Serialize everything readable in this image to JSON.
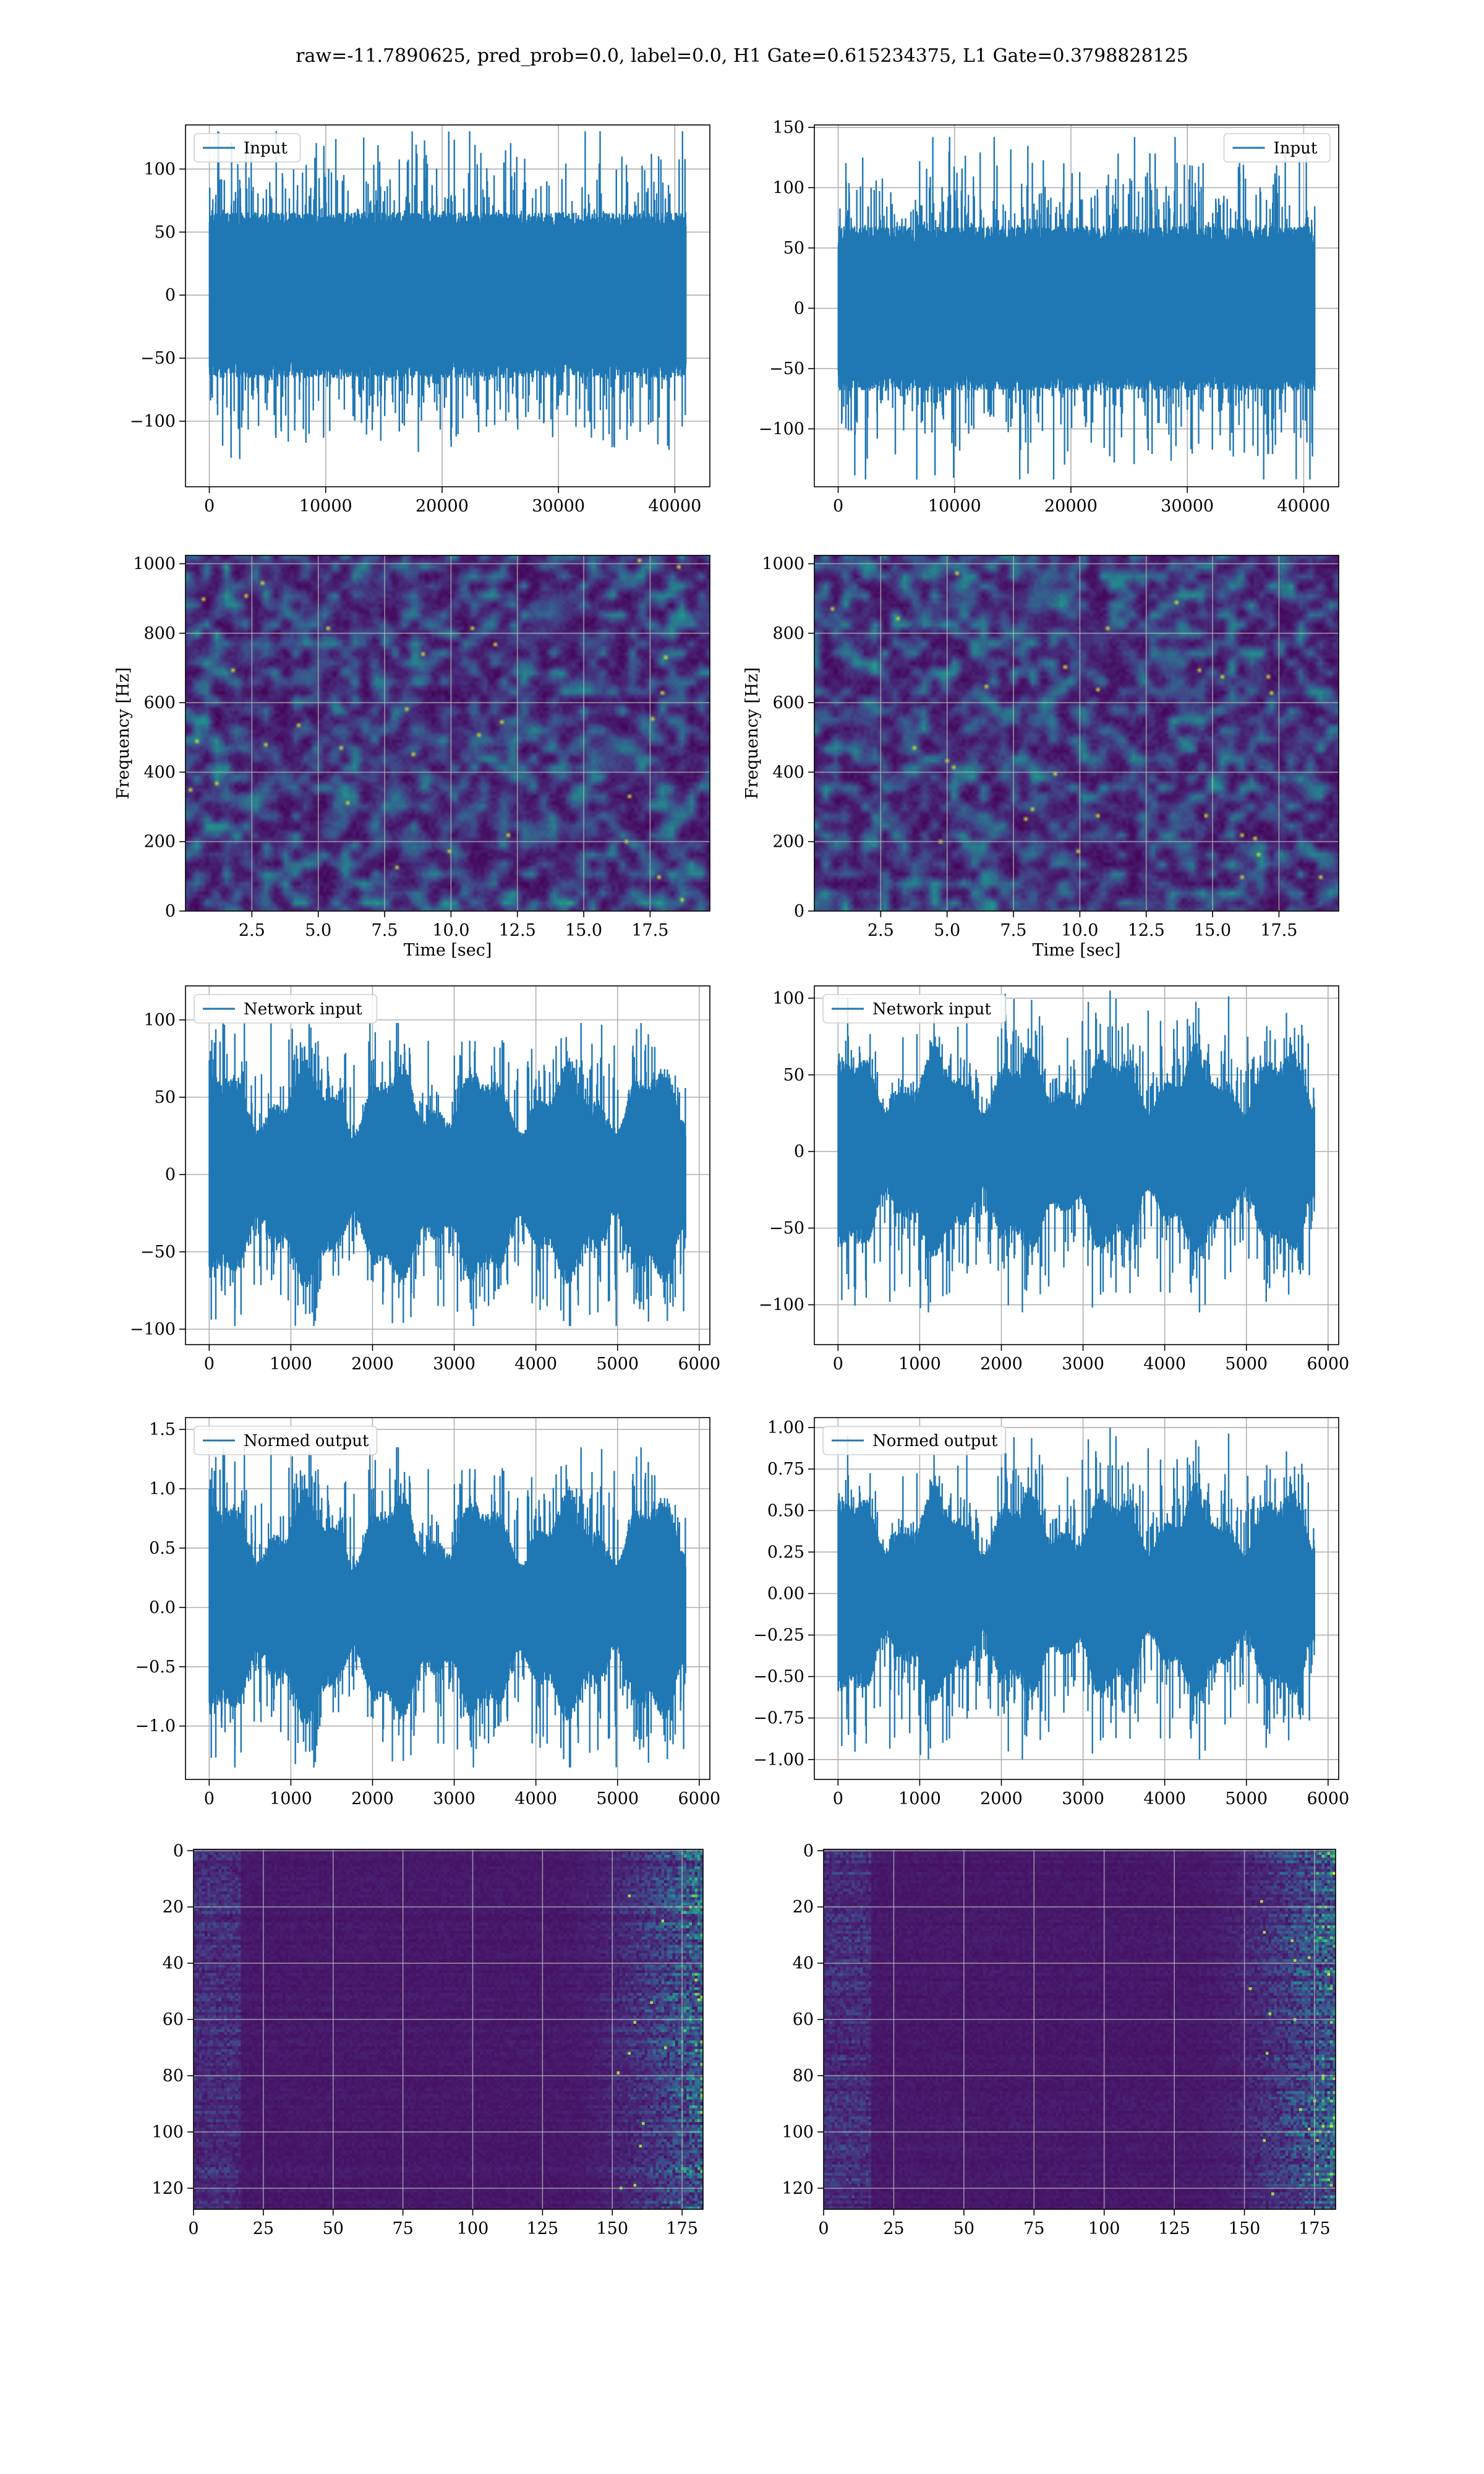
{
  "figure": {
    "suptitle": "raw=-11.7890625, pred_prob=0.0, label=0.0, H1 Gate=0.615234375, L1 Gate=0.3798828125",
    "series_color": "#1f77b4",
    "grid_color": "#b0b0b0"
  },
  "chart_data": [
    {
      "id": "r0c0",
      "type": "line",
      "row": 0,
      "col": 0,
      "series": [
        {
          "name": "Input"
        }
      ],
      "legend": "upper left",
      "n_points": 40960,
      "amp": 26,
      "peak": 130,
      "seed": 11,
      "envelope": "flat",
      "xlim": [
        -2048,
        43008
      ],
      "ylim": [
        -152,
        135
      ],
      "xticks": [
        0,
        10000,
        20000,
        30000,
        40000
      ],
      "xtick_labels": [
        "0",
        "10000",
        "20000",
        "30000",
        "40000"
      ],
      "yticks": [
        -100,
        -50,
        0,
        50,
        100
      ],
      "ytick_labels": [
        "−100",
        "−50",
        "0",
        "50",
        "100"
      ],
      "xlabel": "",
      "ylabel": "",
      "grid": true
    },
    {
      "id": "r0c1",
      "type": "line",
      "row": 0,
      "col": 1,
      "series": [
        {
          "name": "Input"
        }
      ],
      "legend": "upper right",
      "n_points": 40960,
      "amp": 27,
      "peak": 142,
      "seed": 23,
      "envelope": "flat",
      "xlim": [
        -2048,
        43008
      ],
      "ylim": [
        -148,
        152
      ],
      "xticks": [
        0,
        10000,
        20000,
        30000,
        40000
      ],
      "xtick_labels": [
        "0",
        "10000",
        "20000",
        "30000",
        "40000"
      ],
      "yticks": [
        -100,
        -50,
        0,
        50,
        100,
        150
      ],
      "ytick_labels": [
        "−100",
        "−50",
        "0",
        "50",
        "100",
        "150"
      ],
      "xlabel": "",
      "ylabel": "",
      "grid": true
    },
    {
      "id": "r1c0",
      "type": "heatmap",
      "row": 1,
      "col": 0,
      "colormap": "viridis",
      "variant": "spectrogram",
      "seed": 5,
      "xlim": [
        0,
        19.75
      ],
      "ylim": [
        0,
        1024
      ],
      "xticks": [
        2.5,
        5.0,
        7.5,
        10.0,
        12.5,
        15.0,
        17.5
      ],
      "xtick_labels": [
        "2.5",
        "5.0",
        "7.5",
        "10.0",
        "12.5",
        "15.0",
        "17.5"
      ],
      "yticks": [
        0,
        200,
        400,
        600,
        800,
        1000
      ],
      "ytick_labels": [
        "0",
        "200",
        "400",
        "600",
        "800",
        "1000"
      ],
      "xlabel": "Time [sec]",
      "ylabel": "Frequency [Hz]",
      "grid": true
    },
    {
      "id": "r1c1",
      "type": "heatmap",
      "row": 1,
      "col": 1,
      "colormap": "viridis",
      "variant": "spectrogram",
      "seed": 9,
      "xlim": [
        0,
        19.75
      ],
      "ylim": [
        0,
        1024
      ],
      "xticks": [
        2.5,
        5.0,
        7.5,
        10.0,
        12.5,
        15.0,
        17.5
      ],
      "xtick_labels": [
        "2.5",
        "5.0",
        "7.5",
        "10.0",
        "12.5",
        "15.0",
        "17.5"
      ],
      "yticks": [
        0,
        200,
        400,
        600,
        800,
        1000
      ],
      "ytick_labels": [
        "0",
        "200",
        "400",
        "600",
        "800",
        "1000"
      ],
      "xlabel": "Time [sec]",
      "ylabel": "Frequency [Hz]",
      "grid": true
    },
    {
      "id": "r2c0",
      "type": "line",
      "row": 2,
      "col": 0,
      "series": [
        {
          "name": "Network input"
        }
      ],
      "legend": "upper left",
      "n_points": 5835,
      "amp": 20,
      "peak": 98,
      "seed": 37,
      "envelope": "wavy",
      "xlim": [
        -290,
        6130
      ],
      "ylim": [
        -110,
        122
      ],
      "xticks": [
        0,
        1000,
        2000,
        3000,
        4000,
        5000,
        6000
      ],
      "xtick_labels": [
        "0",
        "1000",
        "2000",
        "3000",
        "4000",
        "5000",
        "6000"
      ],
      "yticks": [
        -100,
        -50,
        0,
        50,
        100
      ],
      "ytick_labels": [
        "−100",
        "−50",
        "0",
        "50",
        "100"
      ],
      "xlabel": "",
      "ylabel": "",
      "grid": true
    },
    {
      "id": "r2c1",
      "type": "line",
      "row": 2,
      "col": 1,
      "series": [
        {
          "name": "Network input"
        }
      ],
      "legend": "upper left",
      "n_points": 5835,
      "amp": 19,
      "peak": 105,
      "seed": 41,
      "envelope": "wavy",
      "xlim": [
        -290,
        6130
      ],
      "ylim": [
        -126,
        108
      ],
      "xticks": [
        0,
        1000,
        2000,
        3000,
        4000,
        5000,
        6000
      ],
      "xtick_labels": [
        "0",
        "1000",
        "2000",
        "3000",
        "4000",
        "5000",
        "6000"
      ],
      "yticks": [
        -100,
        -50,
        0,
        50,
        100
      ],
      "ytick_labels": [
        "−100",
        "−50",
        "0",
        "50",
        "100"
      ],
      "xlabel": "",
      "ylabel": "",
      "grid": true
    },
    {
      "id": "r3c0",
      "type": "line",
      "row": 3,
      "col": 0,
      "series": [
        {
          "name": "Normed output"
        }
      ],
      "legend": "upper left",
      "n_points": 5835,
      "amp": 0.27,
      "peak": 1.35,
      "seed": 37,
      "envelope": "wavy",
      "xlim": [
        -290,
        6130
      ],
      "ylim": [
        -1.45,
        1.6
      ],
      "xticks": [
        0,
        1000,
        2000,
        3000,
        4000,
        5000,
        6000
      ],
      "xtick_labels": [
        "0",
        "1000",
        "2000",
        "3000",
        "4000",
        "5000",
        "6000"
      ],
      "yticks": [
        -1.0,
        -0.5,
        0.0,
        0.5,
        1.0,
        1.5
      ],
      "ytick_labels": [
        "−1.0",
        "−0.5",
        "0.0",
        "0.5",
        "1.0",
        "1.5"
      ],
      "xlabel": "",
      "ylabel": "",
      "grid": true
    },
    {
      "id": "r3c1",
      "type": "line",
      "row": 3,
      "col": 1,
      "series": [
        {
          "name": "Normed output"
        }
      ],
      "legend": "upper left",
      "n_points": 5835,
      "amp": 0.18,
      "peak": 1.0,
      "seed": 41,
      "envelope": "wavy",
      "xlim": [
        -290,
        6130
      ],
      "ylim": [
        -1.12,
        1.06
      ],
      "xticks": [
        0,
        1000,
        2000,
        3000,
        4000,
        5000,
        6000
      ],
      "xtick_labels": [
        "0",
        "1000",
        "2000",
        "3000",
        "4000",
        "5000",
        "6000"
      ],
      "yticks": [
        -1.0,
        -0.75,
        -0.5,
        -0.25,
        0.0,
        0.25,
        0.5,
        0.75,
        1.0
      ],
      "ytick_labels": [
        "−1.00",
        "−0.75",
        "−0.50",
        "−0.25",
        "0.00",
        "0.25",
        "0.50",
        "0.75",
        "1.00"
      ],
      "xlabel": "",
      "ylabel": "",
      "grid": true
    },
    {
      "id": "r4c0",
      "type": "heatmap",
      "row": 4,
      "col": 0,
      "colormap": "viridis",
      "variant": "feature",
      "seed": 61,
      "n_rows": 128,
      "n_cols": 183,
      "xlim": [
        0,
        182.5
      ],
      "ylim": [
        127.5,
        -0.5
      ],
      "xticks": [
        0,
        25,
        50,
        75,
        100,
        125,
        150,
        175
      ],
      "xtick_labels": [
        "0",
        "25",
        "50",
        "75",
        "100",
        "125",
        "150",
        "175"
      ],
      "yticks": [
        0,
        20,
        40,
        60,
        80,
        100,
        120
      ],
      "ytick_labels": [
        "0",
        "20",
        "40",
        "60",
        "80",
        "100",
        "120"
      ],
      "xlabel": "",
      "ylabel": "",
      "grid": true
    },
    {
      "id": "r4c1",
      "type": "heatmap",
      "row": 4,
      "col": 1,
      "colormap": "viridis",
      "variant": "feature",
      "seed": 73,
      "n_rows": 128,
      "n_cols": 183,
      "xlim": [
        0,
        182.5
      ],
      "ylim": [
        127.5,
        -0.5
      ],
      "xticks": [
        0,
        25,
        50,
        75,
        100,
        125,
        150,
        175
      ],
      "xtick_labels": [
        "0",
        "25",
        "50",
        "75",
        "100",
        "125",
        "150",
        "175"
      ],
      "yticks": [
        0,
        20,
        40,
        60,
        80,
        100,
        120
      ],
      "ytick_labels": [
        "0",
        "20",
        "40",
        "60",
        "80",
        "100",
        "120"
      ],
      "xlabel": "",
      "ylabel": "",
      "grid": true
    }
  ]
}
